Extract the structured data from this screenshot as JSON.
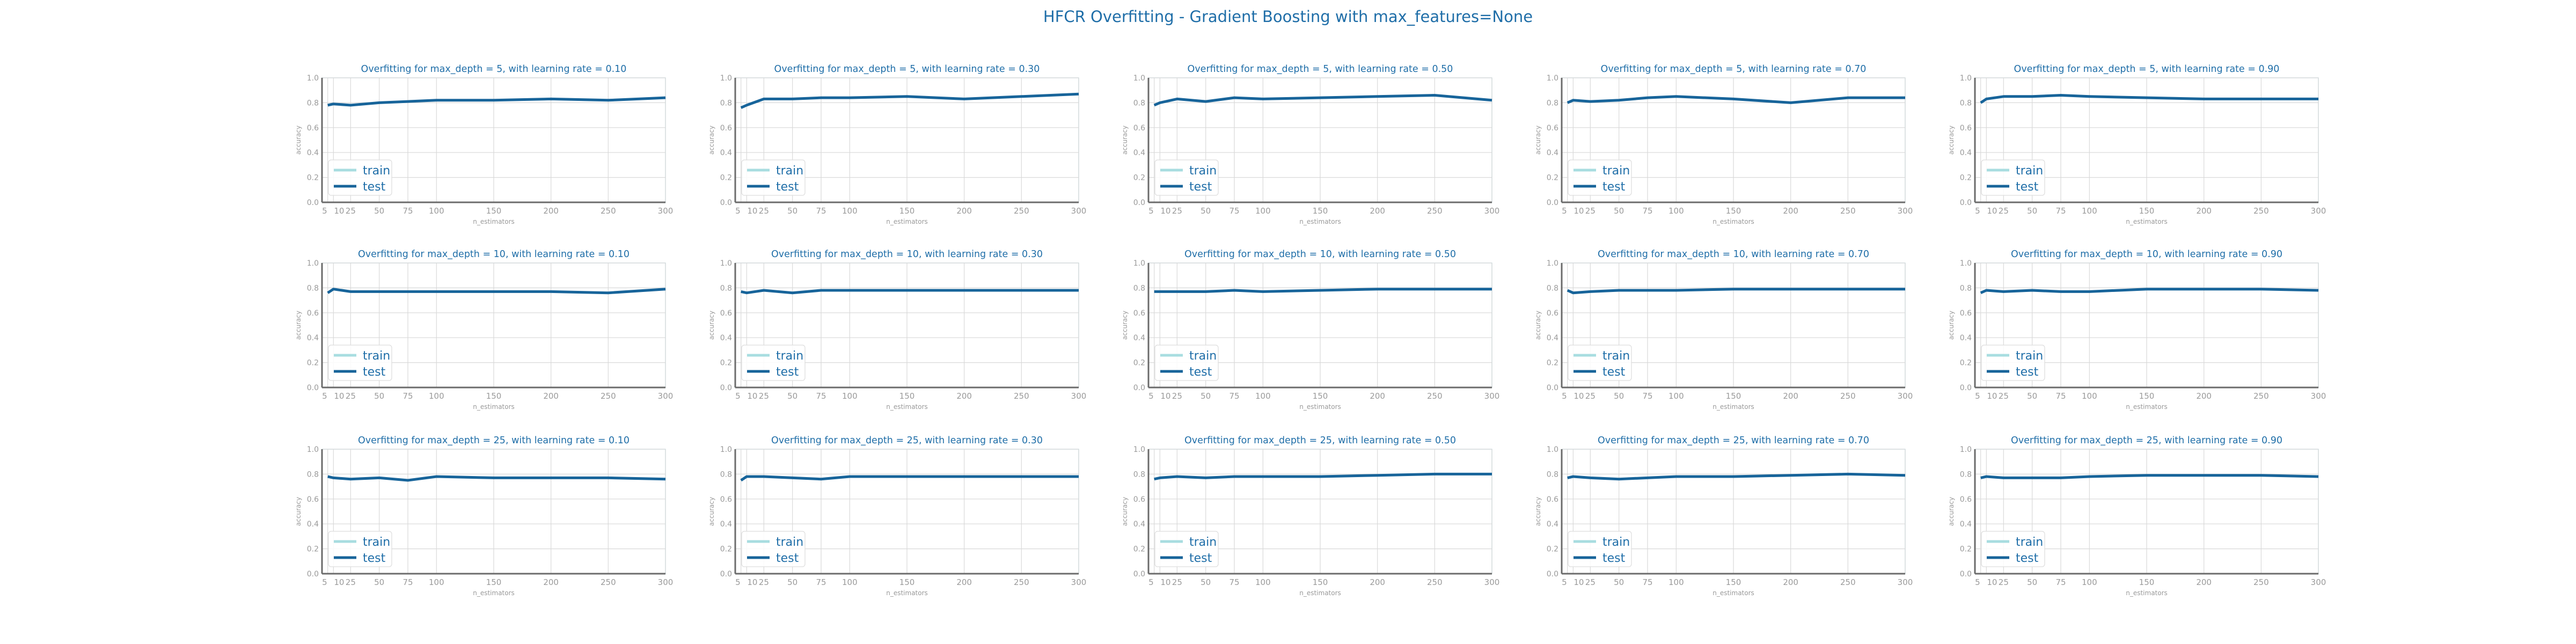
{
  "suptitle": "HFCR Overfitting - Gradient Boosting with max_features=None",
  "colors": {
    "train": "#a8dde0",
    "test": "#17649a",
    "title": "#1f6ea8",
    "axis": "#6b6b6b",
    "tick_label": "#9a9a9a",
    "grid": "#d9d9d9",
    "frame": "#c9e6e9"
  },
  "chart_data": [
    {
      "type": "line",
      "title": "Overfitting for max_depth = 5, with learning rate = 0.10",
      "xlabel": "n_estimators",
      "ylabel": "accuracy",
      "xlim": [
        0,
        300
      ],
      "ylim": [
        0,
        1
      ],
      "x": [
        5,
        10,
        25,
        50,
        75,
        100,
        150,
        200,
        250,
        300
      ],
      "xticks": [
        "5",
        "10",
        "25",
        "50",
        "75",
        "100",
        "150",
        "200",
        "250",
        "300"
      ],
      "yticks": [
        "0.0",
        "0.2",
        "0.4",
        "0.6",
        "0.8",
        "1.0"
      ],
      "series": [
        {
          "name": "train",
          "values": [
            null,
            null,
            null,
            null,
            null,
            null,
            null,
            null,
            null,
            null
          ]
        },
        {
          "name": "test",
          "values": [
            0.78,
            0.79,
            0.78,
            0.8,
            0.81,
            0.82,
            0.82,
            0.83,
            0.82,
            0.84
          ]
        }
      ],
      "legend": "lower-left",
      "grid": true
    },
    {
      "type": "line",
      "title": "Overfitting for max_depth = 5, with learning rate = 0.30",
      "xlabel": "n_estimators",
      "ylabel": "accuracy",
      "xlim": [
        0,
        300
      ],
      "ylim": [
        0,
        1
      ],
      "x": [
        5,
        10,
        25,
        50,
        75,
        100,
        150,
        200,
        250,
        300
      ],
      "xticks": [
        "5",
        "10",
        "25",
        "50",
        "75",
        "100",
        "150",
        "200",
        "250",
        "300"
      ],
      "yticks": [
        "0.0",
        "0.2",
        "0.4",
        "0.6",
        "0.8",
        "1.0"
      ],
      "series": [
        {
          "name": "train",
          "values": [
            null,
            null,
            null,
            null,
            null,
            null,
            null,
            null,
            null,
            null
          ]
        },
        {
          "name": "test",
          "values": [
            0.76,
            0.78,
            0.83,
            0.83,
            0.84,
            0.84,
            0.85,
            0.83,
            0.85,
            0.87
          ]
        }
      ],
      "legend": "lower-left",
      "grid": true
    },
    {
      "type": "line",
      "title": "Overfitting for max_depth = 5, with learning rate = 0.50",
      "xlabel": "n_estimators",
      "ylabel": "accuracy",
      "xlim": [
        0,
        300
      ],
      "ylim": [
        0,
        1
      ],
      "x": [
        5,
        10,
        25,
        50,
        75,
        100,
        150,
        200,
        250,
        300
      ],
      "xticks": [
        "5",
        "10",
        "25",
        "50",
        "75",
        "100",
        "150",
        "200",
        "250",
        "300"
      ],
      "yticks": [
        "0.0",
        "0.2",
        "0.4",
        "0.6",
        "0.8",
        "1.0"
      ],
      "series": [
        {
          "name": "train",
          "values": [
            null,
            null,
            null,
            null,
            null,
            null,
            null,
            null,
            null,
            null
          ]
        },
        {
          "name": "test",
          "values": [
            0.78,
            0.8,
            0.83,
            0.81,
            0.84,
            0.83,
            0.84,
            0.85,
            0.86,
            0.82
          ]
        }
      ],
      "legend": "lower-left",
      "grid": true
    },
    {
      "type": "line",
      "title": "Overfitting for max_depth = 5, with learning rate = 0.70",
      "xlabel": "n_estimators",
      "ylabel": "accuracy",
      "xlim": [
        0,
        300
      ],
      "ylim": [
        0,
        1
      ],
      "x": [
        5,
        10,
        25,
        50,
        75,
        100,
        150,
        200,
        250,
        300
      ],
      "xticks": [
        "5",
        "10",
        "25",
        "50",
        "75",
        "100",
        "150",
        "200",
        "250",
        "300"
      ],
      "yticks": [
        "0.0",
        "0.2",
        "0.4",
        "0.6",
        "0.8",
        "1.0"
      ],
      "series": [
        {
          "name": "train",
          "values": [
            null,
            null,
            null,
            null,
            null,
            null,
            null,
            null,
            null,
            null
          ]
        },
        {
          "name": "test",
          "values": [
            0.8,
            0.82,
            0.81,
            0.82,
            0.84,
            0.85,
            0.83,
            0.8,
            0.84,
            0.84
          ]
        }
      ],
      "legend": "lower-left",
      "grid": true
    },
    {
      "type": "line",
      "title": "Overfitting for max_depth = 5, with learning rate = 0.90",
      "xlabel": "n_estimators",
      "ylabel": "accuracy",
      "xlim": [
        0,
        300
      ],
      "ylim": [
        0,
        1
      ],
      "x": [
        5,
        10,
        25,
        50,
        75,
        100,
        150,
        200,
        250,
        300
      ],
      "xticks": [
        "5",
        "10",
        "25",
        "50",
        "75",
        "100",
        "150",
        "200",
        "250",
        "300"
      ],
      "yticks": [
        "0.0",
        "0.2",
        "0.4",
        "0.6",
        "0.8",
        "1.0"
      ],
      "series": [
        {
          "name": "train",
          "values": [
            null,
            null,
            null,
            null,
            null,
            null,
            null,
            null,
            null,
            null
          ]
        },
        {
          "name": "test",
          "values": [
            0.8,
            0.83,
            0.85,
            0.85,
            0.86,
            0.85,
            0.84,
            0.83,
            0.83,
            0.83
          ]
        }
      ],
      "legend": "lower-left",
      "grid": true
    },
    {
      "type": "line",
      "title": "Overfitting for max_depth = 10, with learning rate = 0.10",
      "xlabel": "n_estimators",
      "ylabel": "accuracy",
      "xlim": [
        0,
        300
      ],
      "ylim": [
        0,
        1
      ],
      "x": [
        5,
        10,
        25,
        50,
        75,
        100,
        150,
        200,
        250,
        300
      ],
      "xticks": [
        "5",
        "10",
        "25",
        "50",
        "75",
        "100",
        "150",
        "200",
        "250",
        "300"
      ],
      "yticks": [
        "0.0",
        "0.2",
        "0.4",
        "0.6",
        "0.8",
        "1.0"
      ],
      "series": [
        {
          "name": "train",
          "values": [
            null,
            null,
            null,
            null,
            null,
            null,
            null,
            null,
            null,
            null
          ]
        },
        {
          "name": "test",
          "values": [
            0.76,
            0.79,
            0.77,
            0.77,
            0.77,
            0.77,
            0.77,
            0.77,
            0.76,
            0.79
          ]
        }
      ],
      "legend": "lower-left",
      "grid": true
    },
    {
      "type": "line",
      "title": "Overfitting for max_depth = 10, with learning rate = 0.30",
      "xlabel": "n_estimators",
      "ylabel": "accuracy",
      "xlim": [
        0,
        300
      ],
      "ylim": [
        0,
        1
      ],
      "x": [
        5,
        10,
        25,
        50,
        75,
        100,
        150,
        200,
        250,
        300
      ],
      "xticks": [
        "5",
        "10",
        "25",
        "50",
        "75",
        "100",
        "150",
        "200",
        "250",
        "300"
      ],
      "yticks": [
        "0.0",
        "0.2",
        "0.4",
        "0.6",
        "0.8",
        "1.0"
      ],
      "series": [
        {
          "name": "train",
          "values": [
            null,
            null,
            null,
            null,
            null,
            null,
            null,
            null,
            null,
            null
          ]
        },
        {
          "name": "test",
          "values": [
            0.77,
            0.76,
            0.78,
            0.76,
            0.78,
            0.78,
            0.78,
            0.78,
            0.78,
            0.78
          ]
        }
      ],
      "legend": "lower-left",
      "grid": true
    },
    {
      "type": "line",
      "title": "Overfitting for max_depth = 10, with learning rate = 0.50",
      "xlabel": "n_estimators",
      "ylabel": "accuracy",
      "xlim": [
        0,
        300
      ],
      "ylim": [
        0,
        1
      ],
      "x": [
        5,
        10,
        25,
        50,
        75,
        100,
        150,
        200,
        250,
        300
      ],
      "xticks": [
        "5",
        "10",
        "25",
        "50",
        "75",
        "100",
        "150",
        "200",
        "250",
        "300"
      ],
      "yticks": [
        "0.0",
        "0.2",
        "0.4",
        "0.6",
        "0.8",
        "1.0"
      ],
      "series": [
        {
          "name": "train",
          "values": [
            null,
            null,
            null,
            null,
            null,
            null,
            null,
            null,
            null,
            null
          ]
        },
        {
          "name": "test",
          "values": [
            0.77,
            0.77,
            0.77,
            0.77,
            0.78,
            0.77,
            0.78,
            0.79,
            0.79,
            0.79
          ]
        }
      ],
      "legend": "lower-left",
      "grid": true
    },
    {
      "type": "line",
      "title": "Overfitting for max_depth = 10, with learning rate = 0.70",
      "xlabel": "n_estimators",
      "ylabel": "accuracy",
      "xlim": [
        0,
        300
      ],
      "ylim": [
        0,
        1
      ],
      "x": [
        5,
        10,
        25,
        50,
        75,
        100,
        150,
        200,
        250,
        300
      ],
      "xticks": [
        "5",
        "10",
        "25",
        "50",
        "75",
        "100",
        "150",
        "200",
        "250",
        "300"
      ],
      "yticks": [
        "0.0",
        "0.2",
        "0.4",
        "0.6",
        "0.8",
        "1.0"
      ],
      "series": [
        {
          "name": "train",
          "values": [
            null,
            null,
            null,
            null,
            null,
            null,
            null,
            null,
            null,
            null
          ]
        },
        {
          "name": "test",
          "values": [
            0.78,
            0.76,
            0.77,
            0.78,
            0.78,
            0.78,
            0.79,
            0.79,
            0.79,
            0.79
          ]
        }
      ],
      "legend": "lower-left",
      "grid": true
    },
    {
      "type": "line",
      "title": "Overfitting for max_depth = 10, with learning rate = 0.90",
      "xlabel": "n_estimators",
      "ylabel": "accuracy",
      "xlim": [
        0,
        300
      ],
      "ylim": [
        0,
        1
      ],
      "x": [
        5,
        10,
        25,
        50,
        75,
        100,
        150,
        200,
        250,
        300
      ],
      "xticks": [
        "5",
        "10",
        "25",
        "50",
        "75",
        "100",
        "150",
        "200",
        "250",
        "300"
      ],
      "yticks": [
        "0.0",
        "0.2",
        "0.4",
        "0.6",
        "0.8",
        "1.0"
      ],
      "series": [
        {
          "name": "train",
          "values": [
            null,
            null,
            null,
            null,
            null,
            null,
            null,
            null,
            null,
            null
          ]
        },
        {
          "name": "test",
          "values": [
            0.76,
            0.78,
            0.77,
            0.78,
            0.77,
            0.77,
            0.79,
            0.79,
            0.79,
            0.78
          ]
        }
      ],
      "legend": "lower-left",
      "grid": true
    },
    {
      "type": "line",
      "title": "Overfitting for max_depth = 25, with learning rate = 0.10",
      "xlabel": "n_estimators",
      "ylabel": "accuracy",
      "xlim": [
        0,
        300
      ],
      "ylim": [
        0,
        1
      ],
      "x": [
        5,
        10,
        25,
        50,
        75,
        100,
        150,
        200,
        250,
        300
      ],
      "xticks": [
        "5",
        "10",
        "25",
        "50",
        "75",
        "100",
        "150",
        "200",
        "250",
        "300"
      ],
      "yticks": [
        "0.0",
        "0.2",
        "0.4",
        "0.6",
        "0.8",
        "1.0"
      ],
      "series": [
        {
          "name": "train",
          "values": [
            null,
            null,
            null,
            null,
            null,
            null,
            null,
            null,
            null,
            null
          ]
        },
        {
          "name": "test",
          "values": [
            0.78,
            0.77,
            0.76,
            0.77,
            0.75,
            0.78,
            0.77,
            0.77,
            0.77,
            0.76
          ]
        }
      ],
      "legend": "lower-left",
      "grid": true
    },
    {
      "type": "line",
      "title": "Overfitting for max_depth = 25, with learning rate = 0.30",
      "xlabel": "n_estimators",
      "ylabel": "accuracy",
      "xlim": [
        0,
        300
      ],
      "ylim": [
        0,
        1
      ],
      "x": [
        5,
        10,
        25,
        50,
        75,
        100,
        150,
        200,
        250,
        300
      ],
      "xticks": [
        "5",
        "10",
        "25",
        "50",
        "75",
        "100",
        "150",
        "200",
        "250",
        "300"
      ],
      "yticks": [
        "0.0",
        "0.2",
        "0.4",
        "0.6",
        "0.8",
        "1.0"
      ],
      "series": [
        {
          "name": "train",
          "values": [
            null,
            null,
            null,
            null,
            null,
            null,
            null,
            null,
            null,
            null
          ]
        },
        {
          "name": "test",
          "values": [
            0.75,
            0.78,
            0.78,
            0.77,
            0.76,
            0.78,
            0.78,
            0.78,
            0.78,
            0.78
          ]
        }
      ],
      "legend": "lower-left",
      "grid": true
    },
    {
      "type": "line",
      "title": "Overfitting for max_depth = 25, with learning rate = 0.50",
      "xlabel": "n_estimators",
      "ylabel": "accuracy",
      "xlim": [
        0,
        300
      ],
      "ylim": [
        0,
        1
      ],
      "x": [
        5,
        10,
        25,
        50,
        75,
        100,
        150,
        200,
        250,
        300
      ],
      "xticks": [
        "5",
        "10",
        "25",
        "50",
        "75",
        "100",
        "150",
        "200",
        "250",
        "300"
      ],
      "yticks": [
        "0.0",
        "0.2",
        "0.4",
        "0.6",
        "0.8",
        "1.0"
      ],
      "series": [
        {
          "name": "train",
          "values": [
            null,
            null,
            null,
            null,
            null,
            null,
            null,
            null,
            null,
            null
          ]
        },
        {
          "name": "test",
          "values": [
            0.76,
            0.77,
            0.78,
            0.77,
            0.78,
            0.78,
            0.78,
            0.79,
            0.8,
            0.8
          ]
        }
      ],
      "legend": "lower-left",
      "grid": true
    },
    {
      "type": "line",
      "title": "Overfitting for max_depth = 25, with learning rate = 0.70",
      "xlabel": "n_estimators",
      "ylabel": "accuracy",
      "xlim": [
        0,
        300
      ],
      "ylim": [
        0,
        1
      ],
      "x": [
        5,
        10,
        25,
        50,
        75,
        100,
        150,
        200,
        250,
        300
      ],
      "xticks": [
        "5",
        "10",
        "25",
        "50",
        "75",
        "100",
        "150",
        "200",
        "250",
        "300"
      ],
      "yticks": [
        "0.0",
        "0.2",
        "0.4",
        "0.6",
        "0.8",
        "1.0"
      ],
      "series": [
        {
          "name": "train",
          "values": [
            null,
            null,
            null,
            null,
            null,
            null,
            null,
            null,
            null,
            null
          ]
        },
        {
          "name": "test",
          "values": [
            0.77,
            0.78,
            0.77,
            0.76,
            0.77,
            0.78,
            0.78,
            0.79,
            0.8,
            0.79
          ]
        }
      ],
      "legend": "lower-left",
      "grid": true
    },
    {
      "type": "line",
      "title": "Overfitting for max_depth = 25, with learning rate = 0.90",
      "xlabel": "n_estimators",
      "ylabel": "accuracy",
      "xlim": [
        0,
        300
      ],
      "ylim": [
        0,
        1
      ],
      "x": [
        5,
        10,
        25,
        50,
        75,
        100,
        150,
        200,
        250,
        300
      ],
      "xticks": [
        "5",
        "10",
        "25",
        "50",
        "75",
        "100",
        "150",
        "200",
        "250",
        "300"
      ],
      "yticks": [
        "0.0",
        "0.2",
        "0.4",
        "0.6",
        "0.8",
        "1.0"
      ],
      "series": [
        {
          "name": "train",
          "values": [
            null,
            null,
            null,
            null,
            null,
            null,
            null,
            null,
            null,
            null
          ]
        },
        {
          "name": "test",
          "values": [
            0.77,
            0.78,
            0.77,
            0.77,
            0.77,
            0.78,
            0.79,
            0.79,
            0.79,
            0.78
          ]
        }
      ],
      "legend": "lower-left",
      "grid": true
    }
  ]
}
